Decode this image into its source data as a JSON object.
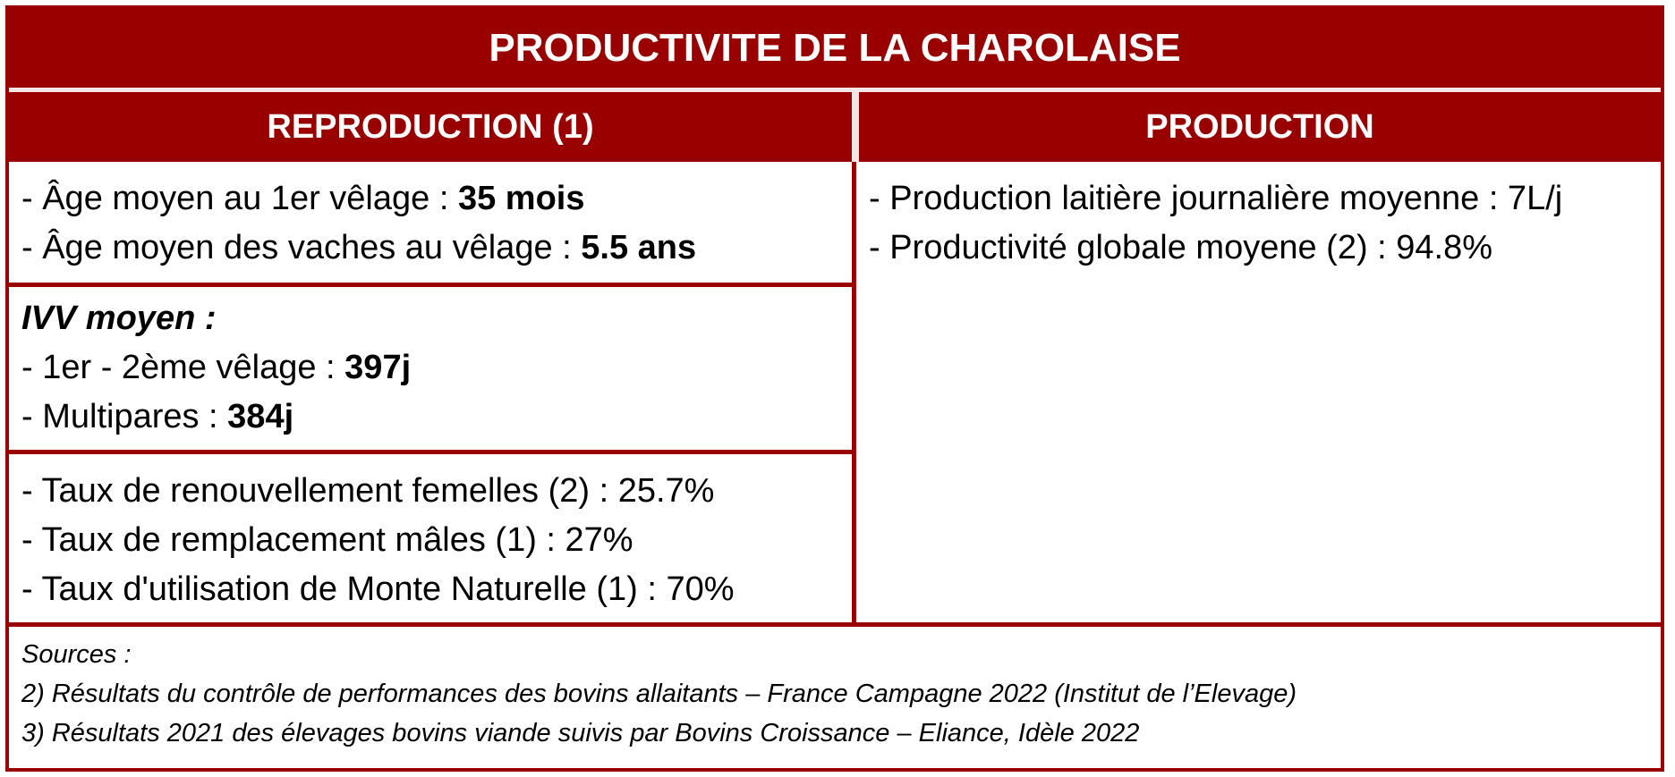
{
  "title": "PRODUCTIVITE DE LA CHAROLAISE",
  "headers": {
    "reproduction": "REPRODUCTION (1)",
    "production": "PRODUCTION"
  },
  "reproduction": {
    "age": [
      {
        "label": "- Âge moyen au 1er vêlage : ",
        "value": "35 mois"
      },
      {
        "label": "- Âge moyen des vaches au vêlage : ",
        "value": "5.5 ans"
      }
    ],
    "ivv_title": "IVV moyen :",
    "ivv": [
      {
        "label": "- 1er - 2ème vêlage : ",
        "value": "397j"
      },
      {
        "label": "- Multipares : ",
        "value": "384j"
      }
    ],
    "taux": [
      "- Taux de renouvellement femelles (2) : 25.7%",
      "- Taux de remplacement mâles (1) : 27%",
      "- Taux d'utilisation de Monte Naturelle (1) : 70%"
    ]
  },
  "production": [
    "- Production laitière journalière moyenne : 7L/j",
    "- Productivité globale moyene (2) : 94.8%"
  ],
  "sources": {
    "heading": "Sources :",
    "lines": [
      "2) Résultats du contrôle de performances des bovins allaitants – France Campagne 2022 (Institut de l’Elevage)",
      "3) Résultats 2021 des élevages bovins viande suivis par Bovins Croissance – Eliance, Idèle 2022"
    ]
  },
  "colors": {
    "accent": "#990000",
    "header_text": "#ffffff"
  }
}
